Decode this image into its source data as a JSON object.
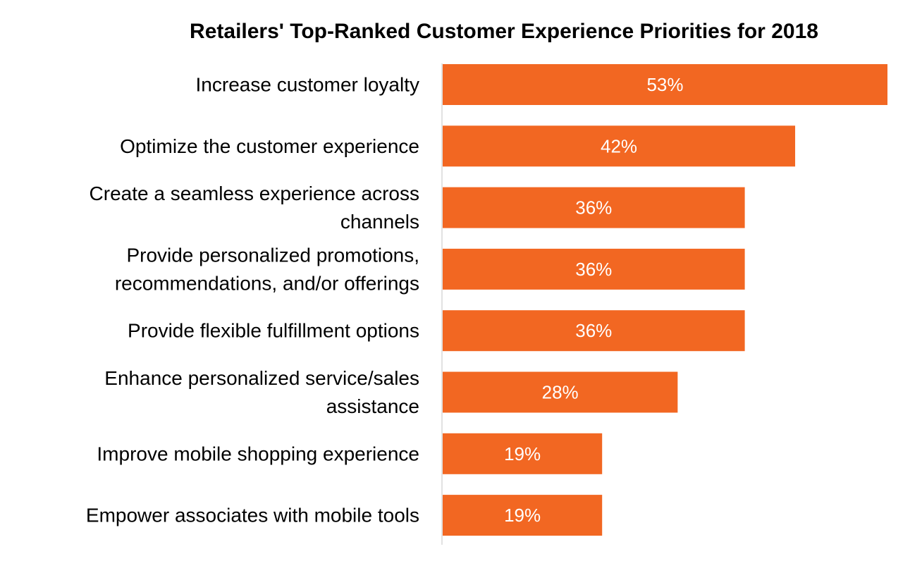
{
  "chart_data": {
    "type": "bar",
    "orientation": "horizontal",
    "title": "Retailers' Top-Ranked Customer Experience Priorities for 2018",
    "xlabel": "",
    "ylabel": "",
    "categories": [
      [
        "Increase customer loyalty"
      ],
      [
        "Optimize the customer experience"
      ],
      [
        "Create a seamless experience across",
        "channels"
      ],
      [
        "Provide personalized promotions,",
        "recommendations, and/or offerings"
      ],
      [
        "Provide flexible fulfillment options"
      ],
      [
        "Enhance personalized service/sales",
        "assistance"
      ],
      [
        "Improve mobile shopping experience"
      ],
      [
        "Empower associates with mobile tools"
      ]
    ],
    "values": [
      53,
      42,
      36,
      36,
      36,
      28,
      19,
      19
    ],
    "value_labels": [
      "53%",
      "42%",
      "36%",
      "36%",
      "36%",
      "28%",
      "19%",
      "19%"
    ],
    "xlim": [
      0,
      53
    ],
    "grid": false,
    "legend": "none",
    "bar_color": "#F26722",
    "axis_color": "#D9D9D9"
  }
}
